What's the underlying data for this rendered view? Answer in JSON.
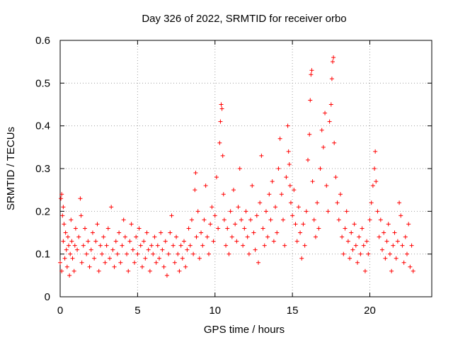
{
  "chart_data": {
    "type": "scatter",
    "title": "Day 326 of 2022, SRMTID for receiver orbo",
    "xlabel": "GPS time / hours",
    "ylabel": "SRMTID / TECUs",
    "xlim": [
      0,
      24
    ],
    "ylim": [
      0,
      0.6
    ],
    "x_ticks": [
      0,
      5,
      10,
      15,
      20
    ],
    "x_tick_labels": [
      "0",
      "5",
      "10",
      "15",
      "20"
    ],
    "y_ticks": [
      0,
      0.1,
      0.2,
      0.3,
      0.4,
      0.5,
      0.6
    ],
    "y_tick_labels": [
      "0",
      "0.1",
      "0.2",
      "0.3",
      "0.4",
      "0.5",
      "0.6"
    ],
    "grid": true,
    "marker": "+",
    "color": "#ff0000",
    "series": [
      {
        "name": "SRMTID",
        "points": [
          [
            0.0,
            0.08
          ],
          [
            0.05,
            0.23
          ],
          [
            0.1,
            0.24
          ],
          [
            0.1,
            0.06
          ],
          [
            0.15,
            0.19
          ],
          [
            0.2,
            0.13
          ],
          [
            0.2,
            0.21
          ],
          [
            0.25,
            0.17
          ],
          [
            0.3,
            0.09
          ],
          [
            0.35,
            0.15
          ],
          [
            0.4,
            0.11
          ],
          [
            0.45,
            0.07
          ],
          [
            0.5,
            0.14
          ],
          [
            0.55,
            0.12
          ],
          [
            0.6,
            0.05
          ],
          [
            0.65,
            0.1
          ],
          [
            0.7,
            0.18
          ],
          [
            0.75,
            0.13
          ],
          [
            0.8,
            0.09
          ],
          [
            0.9,
            0.06
          ],
          [
            0.95,
            0.12
          ],
          [
            1.0,
            0.16
          ],
          [
            1.1,
            0.11
          ],
          [
            1.2,
            0.14
          ],
          [
            1.3,
            0.23
          ],
          [
            1.35,
            0.19
          ],
          [
            1.4,
            0.08
          ],
          [
            1.5,
            0.12
          ],
          [
            1.6,
            0.16
          ],
          [
            1.7,
            0.1
          ],
          [
            1.8,
            0.13
          ],
          [
            1.9,
            0.07
          ],
          [
            2.0,
            0.11
          ],
          [
            2.1,
            0.15
          ],
          [
            2.2,
            0.09
          ],
          [
            2.3,
            0.13
          ],
          [
            2.4,
            0.17
          ],
          [
            2.5,
            0.06
          ],
          [
            2.6,
            0.12
          ],
          [
            2.7,
            0.1
          ],
          [
            2.8,
            0.14
          ],
          [
            2.9,
            0.08
          ],
          [
            3.0,
            0.12
          ],
          [
            3.1,
            0.16
          ],
          [
            3.2,
            0.09
          ],
          [
            3.3,
            0.21
          ],
          [
            3.4,
            0.11
          ],
          [
            3.5,
            0.07
          ],
          [
            3.6,
            0.13
          ],
          [
            3.7,
            0.1
          ],
          [
            3.8,
            0.15
          ],
          [
            3.9,
            0.08
          ],
          [
            4.0,
            0.12
          ],
          [
            4.1,
            0.18
          ],
          [
            4.2,
            0.14
          ],
          [
            4.3,
            0.1
          ],
          [
            4.4,
            0.06
          ],
          [
            4.5,
            0.13
          ],
          [
            4.6,
            0.17
          ],
          [
            4.7,
            0.11
          ],
          [
            4.8,
            0.08
          ],
          [
            4.9,
            0.14
          ],
          [
            5.0,
            0.1
          ],
          [
            5.1,
            0.16
          ],
          [
            5.2,
            0.12
          ],
          [
            5.3,
            0.07
          ],
          [
            5.4,
            0.13
          ],
          [
            5.5,
            0.09
          ],
          [
            5.6,
            0.15
          ],
          [
            5.7,
            0.11
          ],
          [
            5.8,
            0.06
          ],
          [
            5.9,
            0.12
          ],
          [
            6.0,
            0.1
          ],
          [
            6.1,
            0.14
          ],
          [
            6.2,
            0.08
          ],
          [
            6.3,
            0.12
          ],
          [
            6.4,
            0.09
          ],
          [
            6.5,
            0.15
          ],
          [
            6.6,
            0.11
          ],
          [
            6.7,
            0.07
          ],
          [
            6.8,
            0.13
          ],
          [
            6.9,
            0.05
          ],
          [
            7.0,
            0.1
          ],
          [
            7.1,
            0.15
          ],
          [
            7.2,
            0.19
          ],
          [
            7.3,
            0.12
          ],
          [
            7.4,
            0.08
          ],
          [
            7.5,
            0.14
          ],
          [
            7.6,
            0.1
          ],
          [
            7.7,
            0.06
          ],
          [
            7.8,
            0.12
          ],
          [
            7.9,
            0.09
          ],
          [
            8.0,
            0.13
          ],
          [
            8.1,
            0.07
          ],
          [
            8.2,
            0.11
          ],
          [
            8.3,
            0.16
          ],
          [
            8.4,
            0.12
          ],
          [
            8.5,
            0.18
          ],
          [
            8.6,
            0.1
          ],
          [
            8.7,
            0.25
          ],
          [
            8.75,
            0.29
          ],
          [
            8.8,
            0.14
          ],
          [
            8.9,
            0.2
          ],
          [
            9.0,
            0.09
          ],
          [
            9.1,
            0.15
          ],
          [
            9.2,
            0.12
          ],
          [
            9.3,
            0.18
          ],
          [
            9.4,
            0.26
          ],
          [
            9.5,
            0.14
          ],
          [
            9.6,
            0.1
          ],
          [
            9.7,
            0.17
          ],
          [
            9.8,
            0.21
          ],
          [
            9.9,
            0.13
          ],
          [
            10.0,
            0.19
          ],
          [
            10.1,
            0.28
          ],
          [
            10.2,
            0.16
          ],
          [
            10.3,
            0.36
          ],
          [
            10.35,
            0.41
          ],
          [
            10.4,
            0.45
          ],
          [
            10.45,
            0.44
          ],
          [
            10.5,
            0.33
          ],
          [
            10.55,
            0.24
          ],
          [
            10.6,
            0.18
          ],
          [
            10.7,
            0.12
          ],
          [
            10.8,
            0.16
          ],
          [
            10.9,
            0.1
          ],
          [
            11.0,
            0.2
          ],
          [
            11.1,
            0.14
          ],
          [
            11.2,
            0.25
          ],
          [
            11.3,
            0.17
          ],
          [
            11.4,
            0.13
          ],
          [
            11.5,
            0.21
          ],
          [
            11.6,
            0.3
          ],
          [
            11.7,
            0.18
          ],
          [
            11.8,
            0.12
          ],
          [
            11.9,
            0.16
          ],
          [
            12.0,
            0.2
          ],
          [
            12.1,
            0.14
          ],
          [
            12.2,
            0.1
          ],
          [
            12.3,
            0.18
          ],
          [
            12.4,
            0.26
          ],
          [
            12.5,
            0.15
          ],
          [
            12.6,
            0.11
          ],
          [
            12.7,
            0.19
          ],
          [
            12.8,
            0.08
          ],
          [
            12.9,
            0.22
          ],
          [
            13.0,
            0.33
          ],
          [
            13.1,
            0.16
          ],
          [
            13.2,
            0.12
          ],
          [
            13.3,
            0.2
          ],
          [
            13.4,
            0.14
          ],
          [
            13.5,
            0.24
          ],
          [
            13.6,
            0.18
          ],
          [
            13.7,
            0.27
          ],
          [
            13.8,
            0.13
          ],
          [
            13.9,
            0.21
          ],
          [
            14.0,
            0.15
          ],
          [
            14.1,
            0.3
          ],
          [
            14.2,
            0.37
          ],
          [
            14.3,
            0.24
          ],
          [
            14.4,
            0.18
          ],
          [
            14.5,
            0.12
          ],
          [
            14.6,
            0.28
          ],
          [
            14.7,
            0.4
          ],
          [
            14.75,
            0.34
          ],
          [
            14.8,
            0.31
          ],
          [
            14.85,
            0.26
          ],
          [
            14.9,
            0.22
          ],
          [
            15.0,
            0.19
          ],
          [
            15.1,
            0.25
          ],
          [
            15.2,
            0.17
          ],
          [
            15.3,
            0.13
          ],
          [
            15.4,
            0.21
          ],
          [
            15.5,
            0.15
          ],
          [
            15.6,
            0.09
          ],
          [
            15.7,
            0.17
          ],
          [
            15.8,
            0.12
          ],
          [
            15.9,
            0.2
          ],
          [
            16.0,
            0.32
          ],
          [
            16.1,
            0.38
          ],
          [
            16.15,
            0.46
          ],
          [
            16.2,
            0.52
          ],
          [
            16.25,
            0.53
          ],
          [
            16.3,
            0.27
          ],
          [
            16.4,
            0.18
          ],
          [
            16.5,
            0.14
          ],
          [
            16.6,
            0.22
          ],
          [
            16.7,
            0.16
          ],
          [
            16.8,
            0.3
          ],
          [
            16.9,
            0.39
          ],
          [
            17.0,
            0.35
          ],
          [
            17.1,
            0.43
          ],
          [
            17.2,
            0.26
          ],
          [
            17.3,
            0.2
          ],
          [
            17.4,
            0.41
          ],
          [
            17.5,
            0.45
          ],
          [
            17.55,
            0.51
          ],
          [
            17.6,
            0.55
          ],
          [
            17.65,
            0.56
          ],
          [
            17.7,
            0.36
          ],
          [
            17.8,
            0.28
          ],
          [
            17.9,
            0.22
          ],
          [
            18.0,
            0.18
          ],
          [
            18.1,
            0.24
          ],
          [
            18.2,
            0.14
          ],
          [
            18.3,
            0.1
          ],
          [
            18.4,
            0.16
          ],
          [
            18.5,
            0.2
          ],
          [
            18.6,
            0.13
          ],
          [
            18.7,
            0.09
          ],
          [
            18.8,
            0.15
          ],
          [
            18.9,
            0.11
          ],
          [
            19.0,
            0.17
          ],
          [
            19.1,
            0.12
          ],
          [
            19.2,
            0.08
          ],
          [
            19.3,
            0.14
          ],
          [
            19.4,
            0.1
          ],
          [
            19.5,
            0.16
          ],
          [
            19.6,
            0.12
          ],
          [
            19.7,
            0.06
          ],
          [
            19.8,
            0.13
          ],
          [
            19.9,
            0.1
          ],
          [
            20.0,
            0.18
          ],
          [
            20.1,
            0.22
          ],
          [
            20.2,
            0.26
          ],
          [
            20.3,
            0.3
          ],
          [
            20.35,
            0.34
          ],
          [
            20.4,
            0.27
          ],
          [
            20.5,
            0.2
          ],
          [
            20.6,
            0.14
          ],
          [
            20.7,
            0.18
          ],
          [
            20.8,
            0.11
          ],
          [
            20.9,
            0.15
          ],
          [
            21.0,
            0.09
          ],
          [
            21.1,
            0.13
          ],
          [
            21.2,
            0.17
          ],
          [
            21.3,
            0.1
          ],
          [
            21.4,
            0.06
          ],
          [
            21.5,
            0.12
          ],
          [
            21.6,
            0.15
          ],
          [
            21.7,
            0.09
          ],
          [
            21.8,
            0.13
          ],
          [
            21.9,
            0.22
          ],
          [
            22.0,
            0.19
          ],
          [
            22.1,
            0.12
          ],
          [
            22.2,
            0.08
          ],
          [
            22.3,
            0.14
          ],
          [
            22.4,
            0.1
          ],
          [
            22.5,
            0.17
          ],
          [
            22.6,
            0.07
          ],
          [
            22.7,
            0.12
          ],
          [
            22.8,
            0.06
          ]
        ]
      }
    ]
  }
}
